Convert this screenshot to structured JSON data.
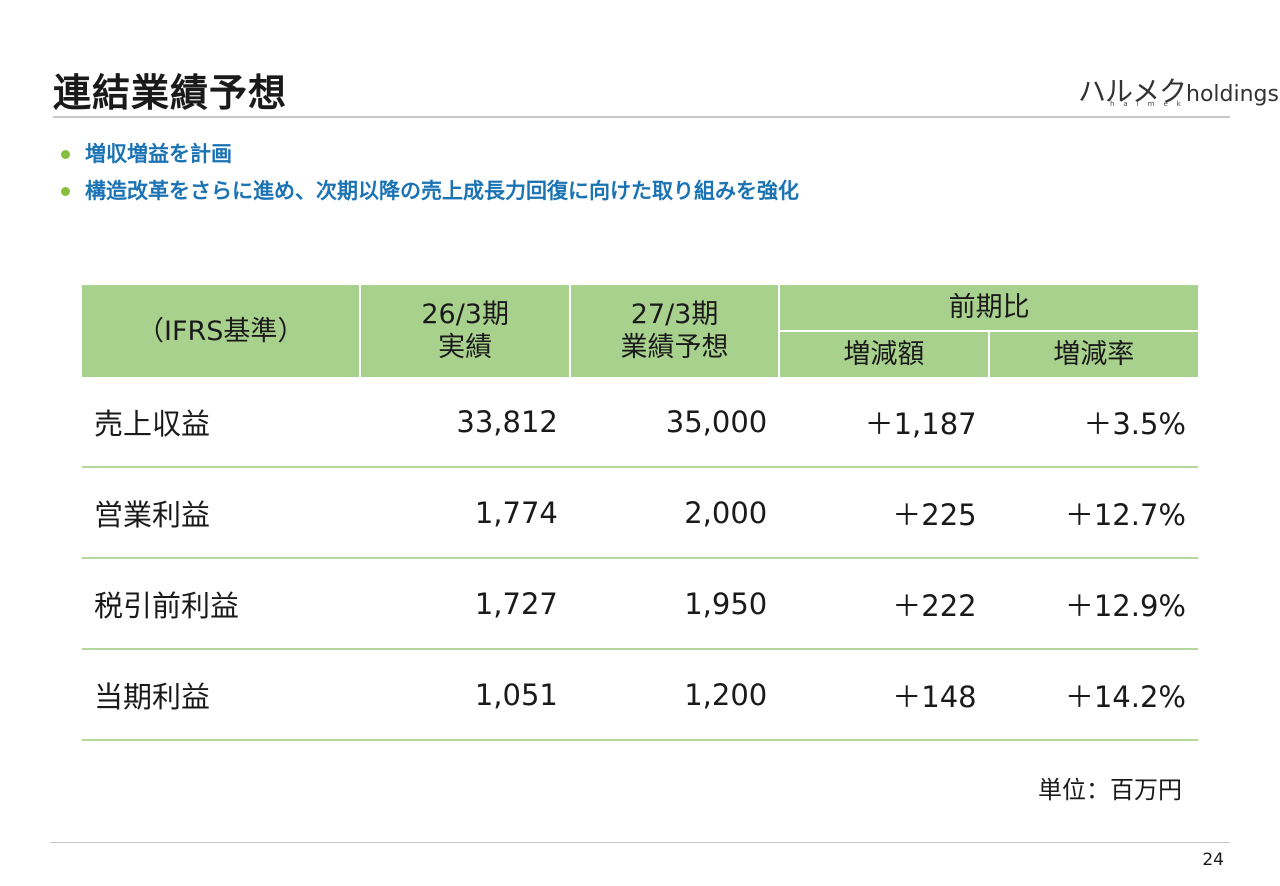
{
  "title": "連結業績予想",
  "logo": {
    "jp": "ハルメク",
    "en": "holdings",
    "sub": "halmek"
  },
  "bullets": [
    "増収増益を計画",
    "構造改革をさらに進め、次期以降の売上成長力回復に向けた取り組みを強化"
  ],
  "table": {
    "corner_label": "（IFRS基準）",
    "col_fy26": {
      "line1": "26/3期",
      "line2": "実績"
    },
    "col_fy27": {
      "line1": "27/3期",
      "line2": "業績予想"
    },
    "group_label": "前期比",
    "col_diff": "増減額",
    "col_rate": "増減率",
    "rows": [
      {
        "label": "売上収益",
        "fy26": "33,812",
        "fy27": "35,000",
        "diff": "＋1,187",
        "rate": "＋3.5%"
      },
      {
        "label": "営業利益",
        "fy26": "1,774",
        "fy27": "2,000",
        "diff": "＋225",
        "rate": "＋12.7%"
      },
      {
        "label": "税引前利益",
        "fy26": "1,727",
        "fy27": "1,950",
        "diff": "＋222",
        "rate": "＋12.9%"
      },
      {
        "label": "当期利益",
        "fy26": "1,051",
        "fy27": "1,200",
        "diff": "＋148",
        "rate": "＋14.2%"
      }
    ]
  },
  "unit_note": "単位：百万円",
  "page_number": "24",
  "colors": {
    "header_green": "#a9d18e",
    "bullet_blue": "#1b73b4",
    "bullet_dot": "#86bf3c",
    "row_rule": "#b4d89a"
  }
}
